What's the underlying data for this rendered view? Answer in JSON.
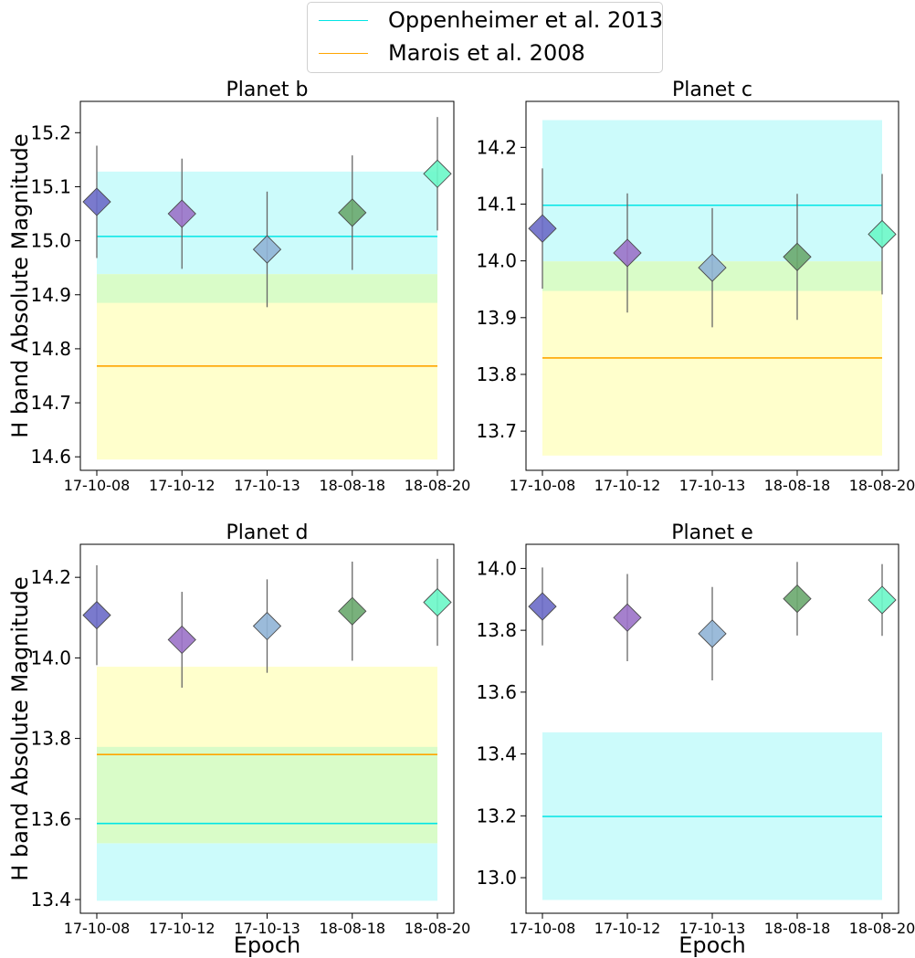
{
  "figure": {
    "legend": [
      {
        "label": "Oppenheimer et al. 2013",
        "color": "#00e5e5"
      },
      {
        "label": "Marois et al. 2008",
        "color": "#ffa500"
      }
    ],
    "band_colors": {
      "oppenheimer": "#ccfbfb",
      "marois": "#ffffcc",
      "overlap": "#d9fcc8"
    },
    "epoch_colors": [
      "#6c6cc8",
      "#9b72c8",
      "#90b4d6",
      "#6aa86e",
      "#6af7c8"
    ]
  },
  "chart_data": [
    {
      "type": "scatter",
      "title": "Planet b",
      "xlabel": "",
      "ylabel": "H band Absolute Magnitude",
      "categories": [
        "17-10-08",
        "17-10-12",
        "17-10-13",
        "18-08-18",
        "18-08-20"
      ],
      "values": [
        15.072,
        15.05,
        14.984,
        15.052,
        15.124
      ],
      "errors": [
        0.104,
        0.102,
        0.107,
        0.106,
        0.105
      ],
      "ylim": [
        14.575,
        15.258
      ],
      "yticks": [
        "14.6",
        "14.7",
        "14.8",
        "14.9",
        "15.0",
        "15.1",
        "15.2"
      ],
      "references": [
        {
          "name": "Oppenheimer et al. 2013",
          "value": 15.008,
          "low": 14.885,
          "high": 15.128
        },
        {
          "name": "Marois et al. 2008",
          "value": 14.768,
          "low": 14.595,
          "high": 14.938
        }
      ]
    },
    {
      "type": "scatter",
      "title": "Planet c",
      "xlabel": "",
      "ylabel": "",
      "categories": [
        "17-10-08",
        "17-10-12",
        "17-10-13",
        "18-08-18",
        "18-08-20"
      ],
      "values": [
        14.057,
        14.014,
        13.988,
        14.007,
        14.047
      ],
      "errors": [
        0.106,
        0.105,
        0.105,
        0.111,
        0.106
      ],
      "ylim": [
        13.631,
        14.281
      ],
      "yticks": [
        "13.7",
        "13.8",
        "13.9",
        "14.0",
        "14.1",
        "14.2"
      ],
      "references": [
        {
          "name": "Oppenheimer et al. 2013",
          "value": 14.098,
          "low": 13.947,
          "high": 14.248
        },
        {
          "name": "Marois et al. 2008",
          "value": 13.829,
          "low": 13.657,
          "high": 13.999
        }
      ]
    },
    {
      "type": "scatter",
      "title": "Planet d",
      "xlabel": "Epoch",
      "ylabel": "H band Absolute Magnitude",
      "categories": [
        "17-10-08",
        "17-10-12",
        "17-10-13",
        "18-08-18",
        "18-08-20"
      ],
      "values": [
        14.106,
        14.045,
        14.079,
        14.116,
        14.138
      ],
      "errors": [
        0.124,
        0.119,
        0.116,
        0.123,
        0.108
      ],
      "ylim": [
        13.366,
        14.282
      ],
      "yticks": [
        "13.4",
        "13.6",
        "13.8",
        "14.0",
        "14.2"
      ],
      "references": [
        {
          "name": "Oppenheimer et al. 2013",
          "value": 13.589,
          "low": 13.397,
          "high": 13.779
        },
        {
          "name": "Marois et al. 2008",
          "value": 13.76,
          "low": 13.54,
          "high": 13.978
        }
      ]
    },
    {
      "type": "scatter",
      "title": "Planet e",
      "xlabel": "Epoch",
      "ylabel": "",
      "categories": [
        "17-10-08",
        "17-10-12",
        "17-10-13",
        "18-08-18",
        "18-08-20"
      ],
      "values": [
        13.877,
        13.841,
        13.789,
        13.902,
        13.898
      ],
      "errors": [
        0.126,
        0.141,
        0.151,
        0.119,
        0.116
      ],
      "ylim": [
        12.885,
        14.078
      ],
      "yticks": [
        "13.0",
        "13.2",
        "13.4",
        "13.6",
        "13.8",
        "14.0"
      ],
      "references": [
        {
          "name": "Oppenheimer et al. 2013",
          "value": 13.198,
          "low": 12.928,
          "high": 13.47
        }
      ]
    }
  ]
}
